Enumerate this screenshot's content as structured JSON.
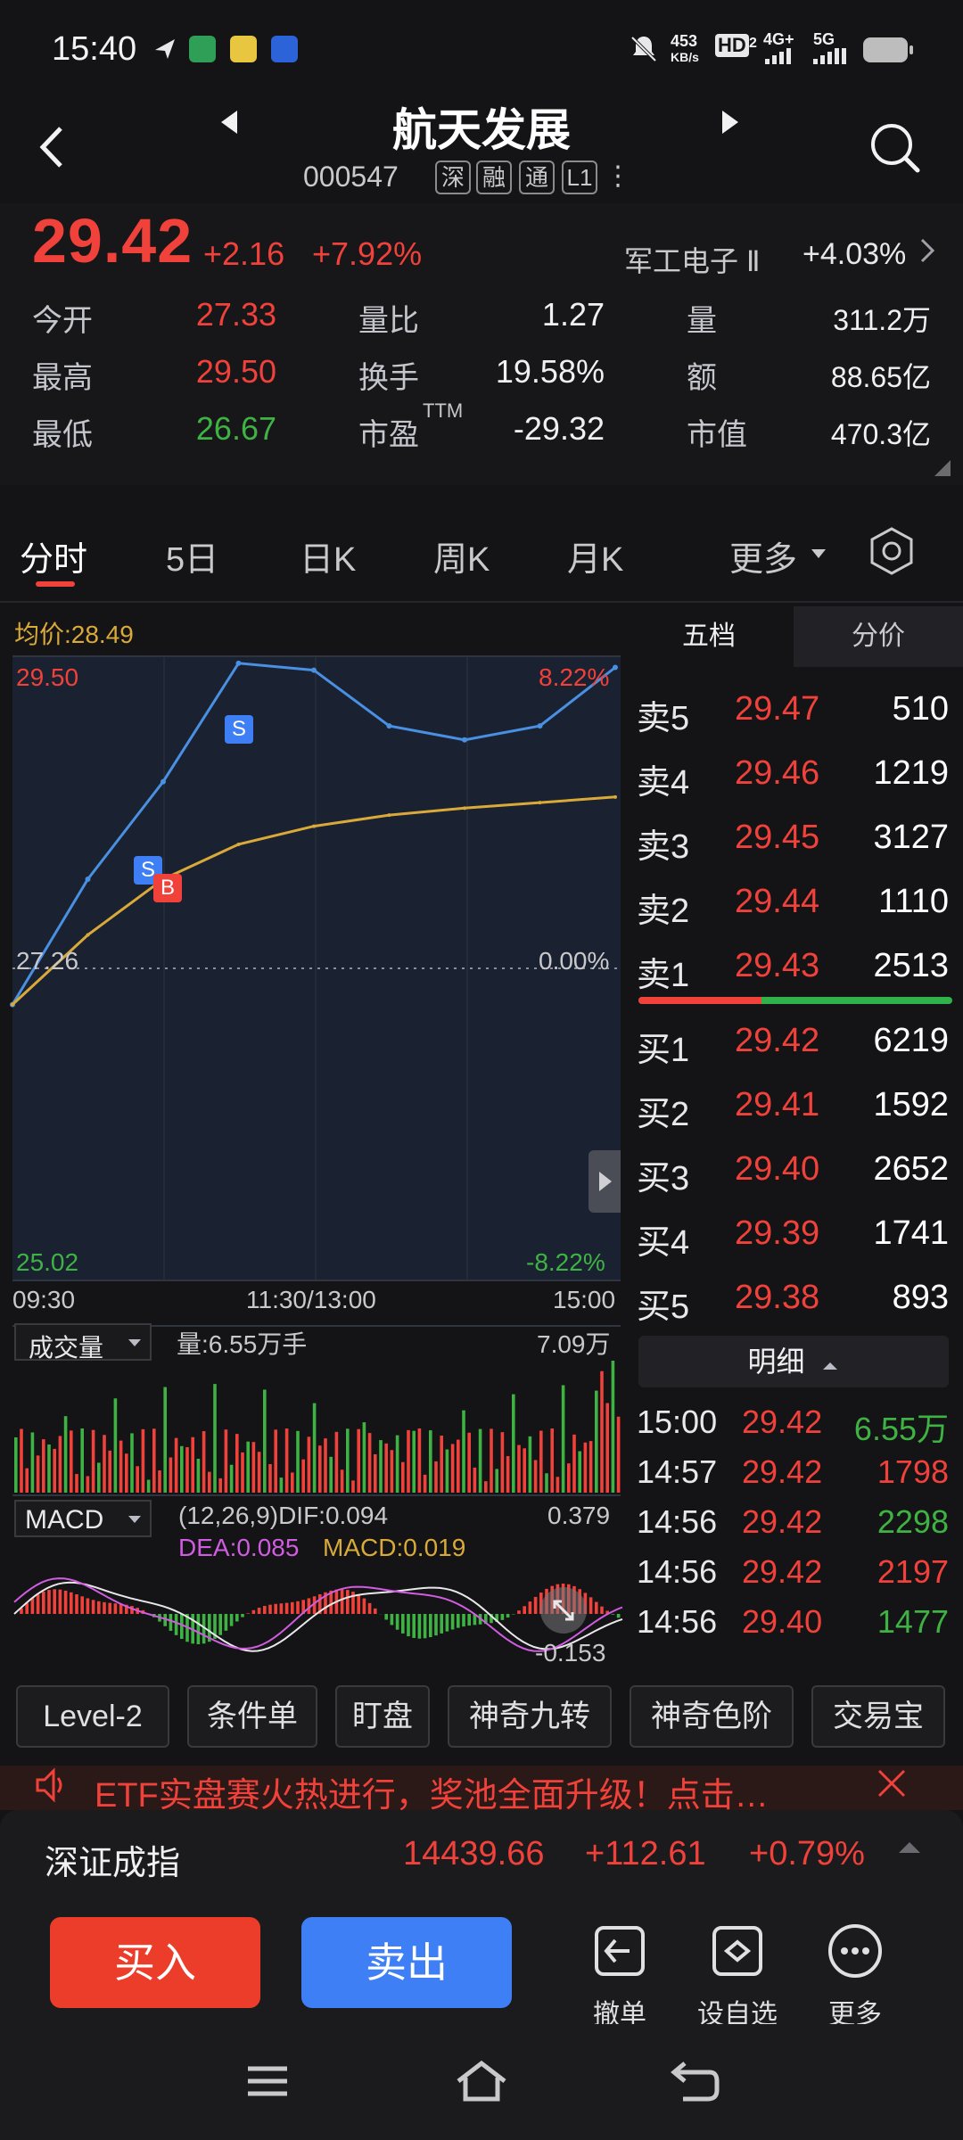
{
  "status_bar": {
    "time": "15:40",
    "net_speed_value": "453",
    "net_speed_unit": "KB/s",
    "hd_label": "HD",
    "hd_sub": "2",
    "net_4g": "4G+",
    "net_5g": "5G",
    "icons": [
      "navigation-icon",
      "app-icon",
      "weibo-icon",
      "shield-app-icon",
      "mute-icon",
      "signal-icon",
      "battery-icon"
    ]
  },
  "header": {
    "title": "航天发展",
    "code": "000547",
    "tags": [
      "深",
      "融",
      "通",
      "L1"
    ],
    "more": "⋮"
  },
  "quote": {
    "price": "29.42",
    "change": "+2.16",
    "change_pct": "+7.92%",
    "sector_name": "军工电子 Ⅱ",
    "sector_pct": "+4.03%",
    "stats": [
      {
        "label": "今开",
        "value": "27.33",
        "color": "red"
      },
      {
        "label": "最高",
        "value": "29.50",
        "color": "red"
      },
      {
        "label": "最低",
        "value": "26.67",
        "color": "green"
      },
      {
        "label": "量比",
        "value": "1.27",
        "color": "white"
      },
      {
        "label": "换手",
        "value": "19.58%",
        "color": "white"
      },
      {
        "label": "市盈",
        "label_sup": "TTM",
        "value": "-29.32",
        "color": "white"
      },
      {
        "label": "量",
        "value": "311.2万",
        "color": "white"
      },
      {
        "label": "额",
        "value": "88.65亿",
        "color": "white"
      },
      {
        "label": "市值",
        "value": "470.3亿",
        "color": "white"
      }
    ]
  },
  "tabs": [
    "分时",
    "5日",
    "日K",
    "周K",
    "月K",
    "更多"
  ],
  "chart": {
    "avg_label": "均价:28.49",
    "y_high": "29.50",
    "y_mid": "27.26",
    "y_low": "25.02",
    "pct_high": "8.22%",
    "pct_mid": "0.00%",
    "pct_low": "-8.22%",
    "time_start": "09:30",
    "time_mid": "11:30/13:00",
    "time_end": "15:00",
    "marker_s": "S",
    "marker_b": "B",
    "volume_label": "成交量",
    "volume_text": "量:6.55万手",
    "volume_max": "7.09万",
    "macd_label": "MACD",
    "macd_params": "(12,26,9)DIF:0.094",
    "macd_dea": "DEA:0.085",
    "macd_val": "MACD:0.019",
    "macd_top": "0.379",
    "macd_bottom": "-0.153"
  },
  "chart_data": {
    "type": "line",
    "title": "",
    "xlabel": "",
    "ylabel": "",
    "x": [
      "09:30",
      "10:00",
      "10:30",
      "11:00",
      "11:30/13:00",
      "13:30",
      "14:00",
      "14:30",
      "15:00"
    ],
    "ylim": [
      25.02,
      29.5
    ],
    "series": [
      {
        "values": [
          27.0,
          27.9,
          28.6,
          29.45,
          29.4,
          29.0,
          28.9,
          29.0,
          29.42
        ]
      },
      {
        "values": [
          27.0,
          27.5,
          27.9,
          28.15,
          28.28,
          28.36,
          28.41,
          28.45,
          28.49
        ]
      }
    ]
  },
  "order_book": {
    "tabs": [
      "五档",
      "分价"
    ],
    "asks": [
      {
        "label": "卖5",
        "price": "29.47",
        "vol": "510"
      },
      {
        "label": "卖4",
        "price": "29.46",
        "vol": "1219"
      },
      {
        "label": "卖3",
        "price": "29.45",
        "vol": "3127"
      },
      {
        "label": "卖2",
        "price": "29.44",
        "vol": "1110"
      },
      {
        "label": "卖1",
        "price": "29.43",
        "vol": "2513"
      }
    ],
    "bids": [
      {
        "label": "买1",
        "price": "29.42",
        "vol": "6219"
      },
      {
        "label": "买2",
        "price": "29.41",
        "vol": "1592"
      },
      {
        "label": "买3",
        "price": "29.40",
        "vol": "2652"
      },
      {
        "label": "买4",
        "price": "29.39",
        "vol": "1741"
      },
      {
        "label": "买5",
        "price": "29.38",
        "vol": "893"
      }
    ],
    "detail_label": "明细",
    "details": [
      {
        "time": "15:00",
        "price": "29.42",
        "vol": "6.55万",
        "color": "green"
      },
      {
        "time": "14:57",
        "price": "29.42",
        "vol": "1798",
        "color": "red"
      },
      {
        "time": "14:56",
        "price": "29.42",
        "vol": "2298",
        "color": "green"
      },
      {
        "time": "14:56",
        "price": "29.42",
        "vol": "2197",
        "color": "red"
      },
      {
        "time": "14:56",
        "price": "29.40",
        "vol": "1477",
        "color": "green"
      }
    ]
  },
  "tools": [
    "Level-2",
    "条件单",
    "盯盘",
    "神奇九转",
    "神奇色阶",
    "交易宝"
  ],
  "banner": {
    "text": "ETF实盘赛火热进行，奖池全面升级！点击…"
  },
  "index": {
    "name": "深证成指",
    "value": "14439.66",
    "change": "+112.61",
    "pct": "+0.79%"
  },
  "actions": {
    "buy": "买入",
    "sell": "卖出",
    "items": [
      "撤单",
      "设自选",
      "更多"
    ]
  },
  "colors": {
    "up": "#f0413a",
    "down": "#3fb244",
    "price_line": "#4a90e2",
    "avg_line": "#d9a93a",
    "dif": "#e8e8ea",
    "dea": "#d05ce0"
  }
}
